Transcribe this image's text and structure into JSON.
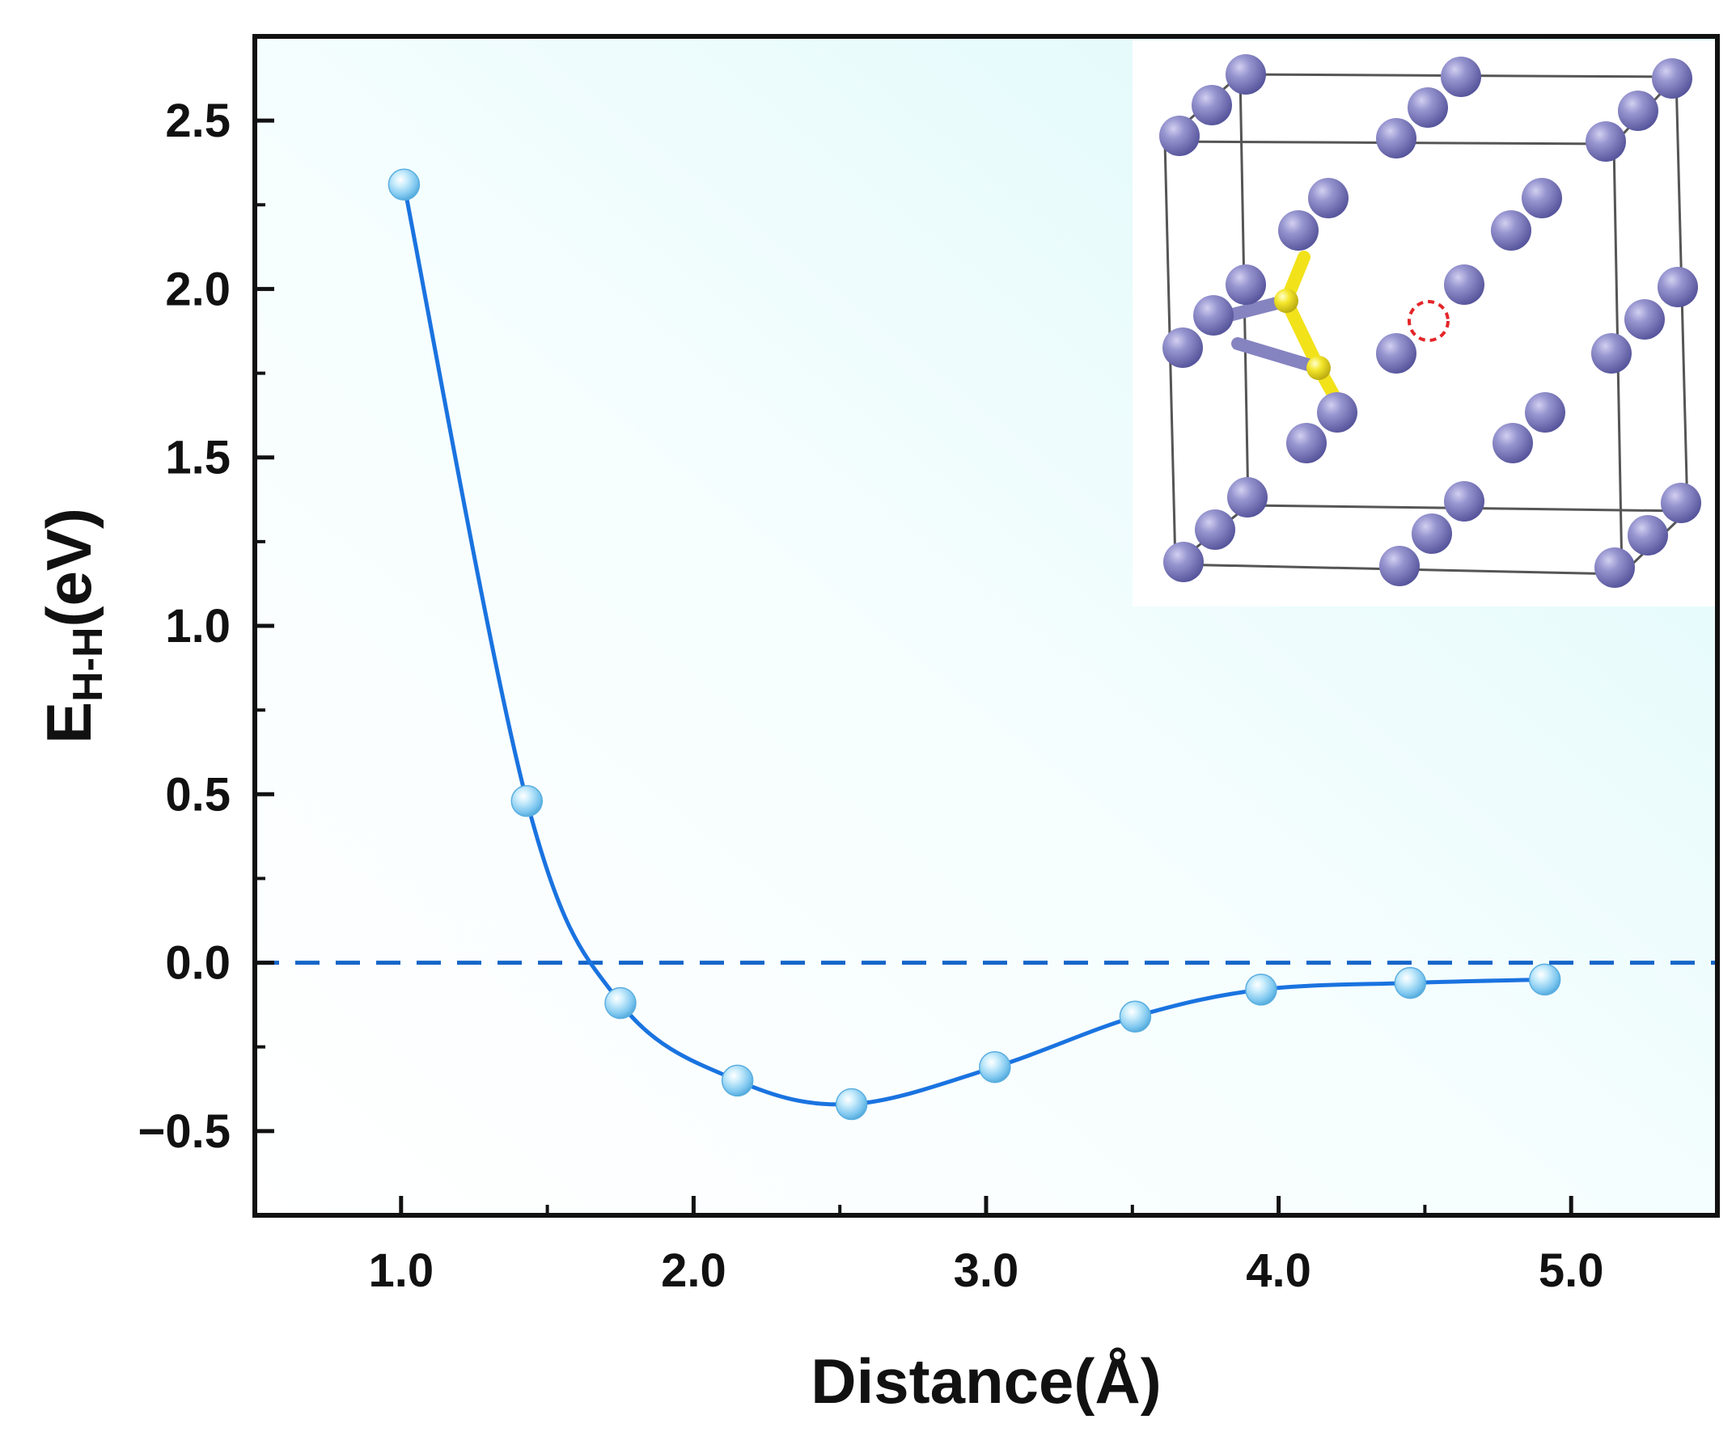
{
  "chart_data": {
    "type": "scatter",
    "title": "",
    "xlabel": "Distance(Å)",
    "ylabel": {
      "main": "E",
      "subscript": "H-H",
      "suffix": "(eV)"
    },
    "xlim": [
      0.5,
      5.5
    ],
    "ylim": [
      -0.75,
      2.75
    ],
    "xticks": [
      {
        "value": 1.0,
        "label": "1.0"
      },
      {
        "value": 2.0,
        "label": "2.0"
      },
      {
        "value": 3.0,
        "label": "3.0"
      },
      {
        "value": 4.0,
        "label": "4.0"
      },
      {
        "value": 5.0,
        "label": "5.0"
      }
    ],
    "xminor": [
      1.5,
      2.5,
      3.5,
      4.5
    ],
    "yticks": [
      {
        "value": -0.5,
        "label": "−0.5"
      },
      {
        "value": 0.0,
        "label": "0.0"
      },
      {
        "value": 0.5,
        "label": "0.5"
      },
      {
        "value": 1.0,
        "label": "1.0"
      },
      {
        "value": 1.5,
        "label": "1.5"
      },
      {
        "value": 2.0,
        "label": "2.0"
      },
      {
        "value": 2.5,
        "label": "2.5"
      }
    ],
    "yminor": [
      -0.25,
      0.25,
      0.75,
      1.25,
      1.75,
      2.25
    ],
    "reference_line": {
      "y": 0.0,
      "style": "dashed",
      "color": "#1565c8"
    },
    "grid": false,
    "series": [
      {
        "points": [
          {
            "x": 1.01,
            "y": 2.31
          },
          {
            "x": 1.43,
            "y": 0.48
          },
          {
            "x": 1.75,
            "y": -0.12
          },
          {
            "x": 2.15,
            "y": -0.35
          },
          {
            "x": 2.54,
            "y": -0.42
          },
          {
            "x": 3.03,
            "y": -0.31
          },
          {
            "x": 3.51,
            "y": -0.16
          },
          {
            "x": 3.94,
            "y": -0.08
          },
          {
            "x": 4.45,
            "y": -0.06
          },
          {
            "x": 4.91,
            "y": -0.05
          }
        ],
        "line_color": "#1a73e0",
        "marker_color": "#7cc6ef",
        "smooth": true
      }
    ],
    "colors": {
      "background_top_right": "#e3fafb",
      "background_bottom_left": "#ffffff",
      "axis": "#111111"
    },
    "inset": {
      "kind": "crystal-structure",
      "location": "top-right",
      "atom_color": "#8583c0",
      "bond_color": "#f2e21a",
      "vacancy_marker_color": "#e3262a",
      "cell_edge_color": "#555555"
    }
  }
}
